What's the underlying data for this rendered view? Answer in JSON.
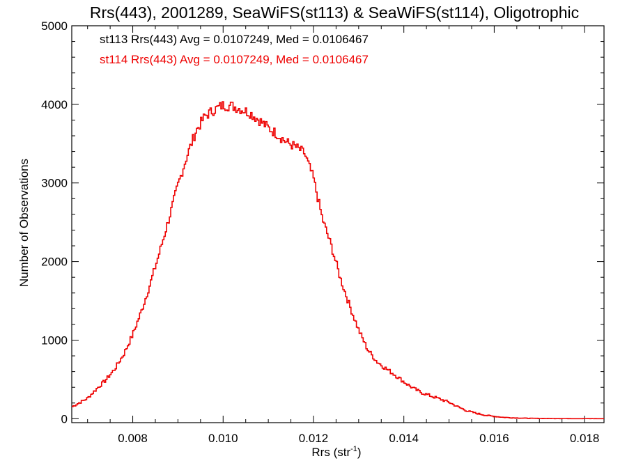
{
  "chart_data": {
    "type": "line",
    "title": "Rrs(443), 2001289, SeaWiFS(st113) & SeaWiFS(st114), Oligotrophic",
    "xlabel": "Rrs (str",
    "xlabel_sup": "-1",
    "xlabel_suffix": ")",
    "ylabel": "Number of Observations",
    "xlim": [
      0.00665,
      0.01843
    ],
    "ylim": [
      -50,
      5000
    ],
    "xticks": [
      0.008,
      0.01,
      0.012,
      0.014,
      0.016,
      0.018
    ],
    "xtick_labels": [
      "0.008",
      "0.010",
      "0.012",
      "0.014",
      "0.016",
      "0.018"
    ],
    "yticks": [
      0,
      1000,
      2000,
      3000,
      4000,
      5000
    ],
    "ytick_labels": [
      "0",
      "1000",
      "2000",
      "3000",
      "4000",
      "5000"
    ],
    "grid": false,
    "annotations": [
      {
        "text": "st113 Rrs(443) Avg = 0.0107249, Med = 0.0106467",
        "color": "#000000"
      },
      {
        "text": "st114 Rrs(443) Avg = 0.0107249, Med = 0.0106467",
        "color": "#ee0000"
      }
    ],
    "series": [
      {
        "color": "#ee0000",
        "x": [
          0.00665,
          0.007,
          0.0072,
          0.0074,
          0.0076,
          0.0078,
          0.008,
          0.0082,
          0.0084,
          0.0086,
          0.0088,
          0.009,
          0.0092,
          0.0094,
          0.0096,
          0.0098,
          0.01,
          0.0102,
          0.0104,
          0.0106,
          0.0108,
          0.011,
          0.0112,
          0.0114,
          0.0116,
          0.0118,
          0.012,
          0.0122,
          0.0124,
          0.0126,
          0.0128,
          0.013,
          0.0132,
          0.0134,
          0.0136,
          0.0138,
          0.014,
          0.0142,
          0.0144,
          0.0146,
          0.0148,
          0.015,
          0.0152,
          0.0154,
          0.0156,
          0.0158,
          0.016,
          0.0162,
          0.0164,
          0.0166,
          0.0168,
          0.017,
          0.0172,
          0.0174,
          0.0176,
          0.0178,
          0.018,
          0.0182,
          0.01843
        ],
        "y": [
          150,
          260,
          380,
          490,
          630,
          820,
          1070,
          1380,
          1740,
          2130,
          2540,
          2970,
          3340,
          3660,
          3850,
          3930,
          3990,
          3980,
          3940,
          3890,
          3800,
          3700,
          3620,
          3520,
          3460,
          3380,
          3060,
          2540,
          2190,
          1780,
          1440,
          1130,
          880,
          730,
          640,
          560,
          470,
          390,
          330,
          290,
          250,
          210,
          150,
          100,
          70,
          45,
          30,
          18,
          12,
          8,
          5,
          4,
          3,
          2,
          2,
          1,
          1,
          1,
          0
        ]
      }
    ]
  }
}
